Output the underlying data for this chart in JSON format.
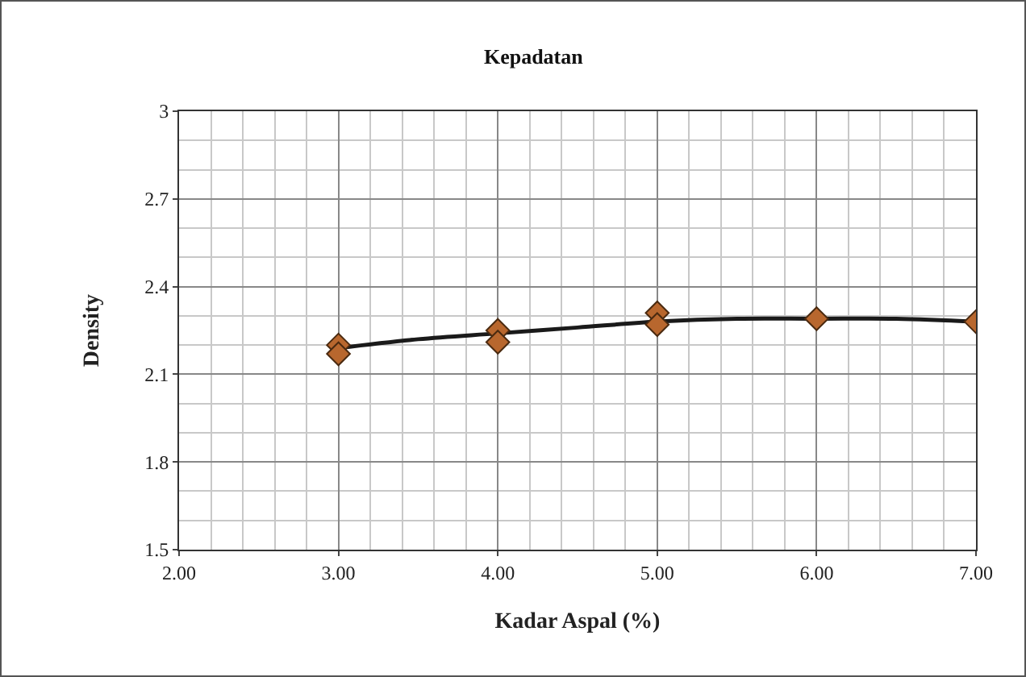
{
  "chart_data": {
    "type": "scatter",
    "title": "Kepadatan",
    "xlabel": "Kadar Aspal (%)",
    "ylabel": "Density",
    "xlim": [
      2,
      7
    ],
    "xticks": [
      {
        "value": 2,
        "label": "2.00"
      },
      {
        "value": 3,
        "label": "3.00"
      },
      {
        "value": 4,
        "label": "4.00"
      },
      {
        "value": 5,
        "label": "5.00"
      },
      {
        "value": 6,
        "label": "6.00"
      },
      {
        "value": 7,
        "label": "7.00"
      }
    ],
    "ylim": [
      1.5,
      3
    ],
    "yticks": [
      1.5,
      1.8,
      2.1,
      2.4,
      2.7,
      3
    ],
    "grid": true,
    "marker": "diamond",
    "series": [
      {
        "color": "#b8672e",
        "x": [
          3,
          3,
          4,
          4,
          5,
          5,
          6,
          7
        ],
        "values": [
          2.2,
          2.17,
          2.25,
          2.21,
          2.31,
          2.27,
          2.29,
          2.28
        ]
      },
      {
        "type": "line",
        "color": "#1a1a1a",
        "line_style": "solid",
        "marker": "none",
        "x": [
          3,
          3.5,
          4,
          4.5,
          5,
          5.5,
          6,
          6.5,
          7
        ],
        "values": [
          2.19,
          2.22,
          2.24,
          2.26,
          2.28,
          2.29,
          2.29,
          2.29,
          2.28
        ]
      }
    ]
  }
}
